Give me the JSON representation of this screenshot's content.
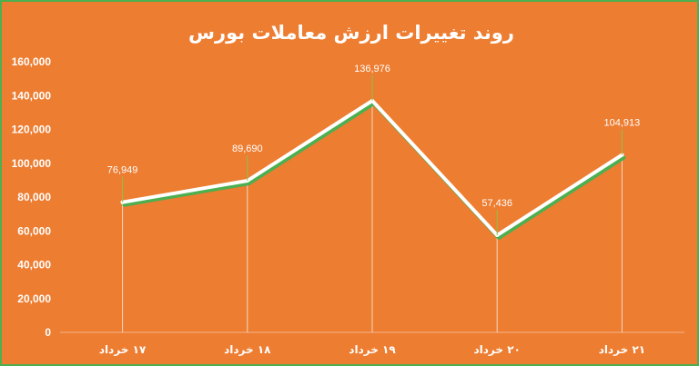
{
  "chart_data": {
    "type": "line",
    "title": "روند تغییرات ارزش معاملات بورس",
    "categories": [
      "۱۷ خرداد",
      "۱۸ خرداد",
      "۱۹ خرداد",
      "۲۰ خرداد",
      "۲۱ خرداد"
    ],
    "values": [
      76949,
      89690,
      136976,
      57436,
      104913
    ],
    "data_labels": [
      "76,949",
      "89,690",
      "136,976",
      "57,436",
      "104,913"
    ],
    "y_ticks": [
      "0",
      "20,000",
      "40,000",
      "60,000",
      "80,000",
      "100,000",
      "120,000",
      "140,000",
      "160,000"
    ],
    "ylim": [
      0,
      160000
    ],
    "grid": false,
    "legend": "none",
    "colors": {
      "background": "#ed7d31",
      "line": "#ffffff",
      "shadow": "#4caf50",
      "border": "#4caf50"
    }
  }
}
